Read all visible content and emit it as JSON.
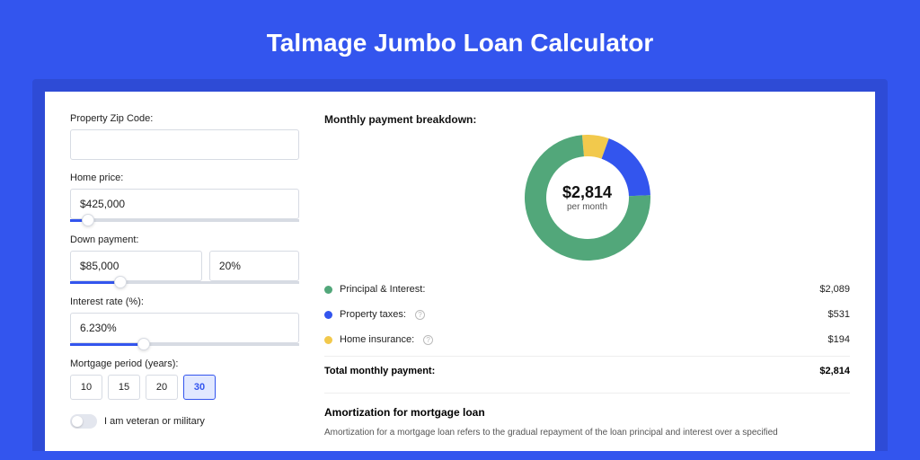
{
  "page_title": "Talmage Jumbo Loan Calculator",
  "colors": {
    "page_bg": "#3355ee",
    "shadow_bg": "#2e4bd6",
    "card_bg": "#ffffff",
    "accent": "#3355ee",
    "border": "#d7dbe3"
  },
  "form": {
    "zip": {
      "label": "Property Zip Code:",
      "value": ""
    },
    "home_price": {
      "label": "Home price:",
      "value": "$425,000",
      "slider_pct": 8
    },
    "down_payment": {
      "label": "Down payment:",
      "amount": "$85,000",
      "percent": "20%",
      "slider_pct": 22
    },
    "interest_rate": {
      "label": "Interest rate (%):",
      "value": "6.230%",
      "slider_pct": 32
    },
    "mortgage_period": {
      "label": "Mortgage period (years):",
      "options": [
        "10",
        "15",
        "20",
        "30"
      ],
      "selected": "30"
    },
    "veteran": {
      "label": "I am veteran or military",
      "checked": false
    }
  },
  "breakdown": {
    "title": "Monthly payment breakdown:",
    "center_amount": "$2,814",
    "center_sub": "per month",
    "items": [
      {
        "label": "Principal & Interest:",
        "value": "$2,089",
        "color": "#52a77a",
        "info": false,
        "numeric": 2089
      },
      {
        "label": "Property taxes:",
        "value": "$531",
        "color": "#3355ee",
        "info": true,
        "numeric": 531
      },
      {
        "label": "Home insurance:",
        "value": "$194",
        "color": "#f2c94c",
        "info": true,
        "numeric": 194
      }
    ],
    "total": {
      "label": "Total monthly payment:",
      "value": "$2,814",
      "numeric": 2814
    },
    "donut": {
      "size": 140,
      "thickness": 24,
      "bg": "#ffffff"
    }
  },
  "amortization": {
    "title": "Amortization for mortgage loan",
    "text": "Amortization for a mortgage loan refers to the gradual repayment of the loan principal and interest over a specified"
  }
}
